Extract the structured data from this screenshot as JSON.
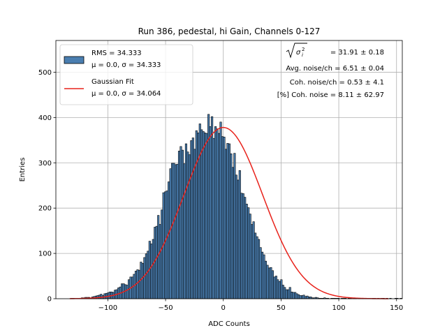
{
  "chart_data": {
    "type": "bar",
    "title": "Run 386, pedestal, hi Gain, Channels 0-127",
    "xlabel": "ADC Counts",
    "ylabel": "Entries",
    "xlim": [
      -145,
      155
    ],
    "ylim": [
      0,
      570
    ],
    "xticks": [
      -100,
      -50,
      0,
      50,
      100,
      150
    ],
    "yticks": [
      0,
      100,
      200,
      300,
      400,
      500
    ],
    "grid": true,
    "bin_width": 1.5,
    "histogram": {
      "name_line1": "RMS = 34.333",
      "name_line2": "μ = 0.0, σ = 34.333",
      "color": "#4a7eb0",
      "edge_color": "#000000",
      "bin_start": -133.5,
      "counts": [
        0,
        1,
        1,
        1,
        1,
        1,
        1,
        2,
        2,
        3,
        3,
        3,
        2,
        4,
        5,
        6,
        7,
        8,
        10,
        7,
        11,
        12,
        13,
        15,
        15,
        14,
        19,
        20,
        24,
        26,
        33,
        33,
        31,
        30,
        42,
        48,
        48,
        54,
        61,
        64,
        63,
        81,
        78,
        91,
        99,
        105,
        127,
        121,
        131,
        158,
        160,
        184,
        164,
        196,
        234,
        236,
        238,
        258,
        287,
        299,
        299,
        296,
        297,
        326,
        336,
        328,
        298,
        342,
        324,
        318,
        349,
        355,
        330,
        371,
        366,
        386,
        373,
        369,
        366,
        365,
        407,
        380,
        402,
        354,
        380,
        375,
        365,
        390,
        358,
        357,
        330,
        343,
        342,
        320,
        290,
        321,
        273,
        262,
        283,
        233,
        232,
        224,
        209,
        201,
        187,
        164,
        170,
        145,
        137,
        131,
        113,
        103,
        97,
        83,
        74,
        68,
        69,
        62,
        48,
        50,
        42,
        38,
        42,
        30,
        25,
        20,
        20,
        25,
        15,
        14,
        14,
        11,
        9,
        7,
        7,
        8,
        5,
        6,
        4,
        4,
        2,
        2,
        3,
        2,
        1,
        1,
        1,
        2,
        1,
        1,
        0,
        1,
        1,
        1,
        1,
        1,
        0,
        1,
        1,
        1,
        0,
        1,
        1,
        0,
        1,
        1,
        0,
        1,
        0,
        1,
        0,
        1,
        0,
        1,
        0,
        1,
        1,
        0,
        1,
        0,
        1,
        1,
        0,
        1,
        0,
        1,
        0,
        0,
        1,
        1,
        0,
        1
      ]
    },
    "fit": {
      "name_line1": "Gaussian Fit",
      "name_line2": "μ = 0.0, σ = 34.064",
      "color": "#e8221b",
      "mu": 0.0,
      "sigma": 34.064,
      "amplitude": 378,
      "x_range": [
        -133,
        143
      ]
    },
    "legend_position": "top-left",
    "annotations": {
      "sigma_label": "= 31.91 ± 0.18",
      "avg_noise": "Avg. noise/ch = 6.51 ± 0.04",
      "coh_noise": "Coh. noise/ch = 0.53 ± 4.1",
      "coh_percent": "[%] Coh. noise = 8.11 ± 62.97"
    }
  }
}
